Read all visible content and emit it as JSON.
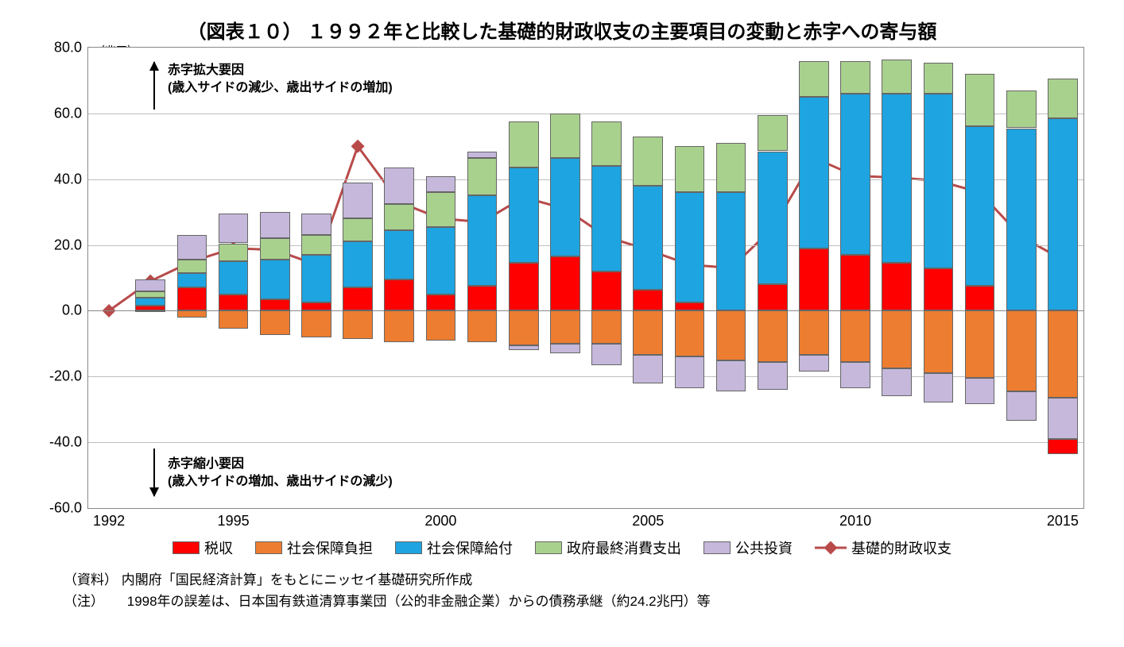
{
  "chart": {
    "type": "stacked-bar-with-line",
    "title": "（図表１０） １９９２年と比較した基礎的財政収支の主要項目の変動と赤字への寄与額",
    "unit_label": "（兆円）",
    "background_color": "#ffffff",
    "grid_color": "#bfbfbf",
    "axis_color": "#888888",
    "title_fontsize": 24,
    "tick_fontsize": 18,
    "legend_fontsize": 18,
    "annotation_fontsize": 16,
    "footnote_fontsize": 17,
    "ylim": [
      -60,
      80
    ],
    "ytick_step": 20,
    "yticks": [
      "-60.0",
      "-40.0",
      "-20.0",
      "0.0",
      "20.0",
      "40.0",
      "60.0",
      "80.0"
    ],
    "years": [
      1992,
      1993,
      1994,
      1995,
      1996,
      1997,
      1998,
      1999,
      2000,
      2001,
      2002,
      2003,
      2004,
      2005,
      2006,
      2007,
      2008,
      2009,
      2010,
      2011,
      2012,
      2013,
      2014,
      2015
    ],
    "xtick_years": [
      1992,
      1995,
      2000,
      2005,
      2010,
      2015
    ],
    "bar_width_ratio": 0.72,
    "series": {
      "tax_revenue": {
        "label": "税収",
        "color": "#ff0000"
      },
      "ss_burden": {
        "label": "社会保障負担",
        "color": "#ed7d31"
      },
      "ss_benefit": {
        "label": "社会保障給付",
        "color": "#1ea4e0"
      },
      "gov_consume": {
        "label": "政府最終消費支出",
        "color": "#a9d18e"
      },
      "public_invest": {
        "label": "公共投資",
        "color": "#c5b8db"
      },
      "pb_line": {
        "label": "基礎的財政収支",
        "color": "#b84a4a",
        "marker": "diamond",
        "marker_size": 12,
        "line_width": 3
      }
    },
    "positive_stack_order": [
      "tax_revenue",
      "ss_benefit",
      "gov_consume",
      "public_invest"
    ],
    "negative_stack_order": [
      "ss_burden",
      "public_invest",
      "tax_revenue"
    ],
    "data": {
      "tax_revenue": [
        0,
        1.5,
        7.0,
        5.0,
        3.5,
        2.5,
        7.0,
        9.5,
        5.0,
        7.5,
        14.5,
        16.5,
        12.0,
        6.5,
        2.5,
        0.0,
        8.0,
        19.0,
        17.0,
        14.5,
        13.0,
        7.5,
        0.0,
        -4.5
      ],
      "ss_burden": [
        0,
        -0.5,
        -2.0,
        -5.5,
        -7.5,
        -8.0,
        -8.5,
        -9.5,
        -9.0,
        -9.5,
        -10.5,
        -10.0,
        -10.0,
        -13.5,
        -14.0,
        -15.0,
        -15.5,
        -13.5,
        -15.5,
        -17.5,
        -19.0,
        -20.5,
        -24.5,
        -26.5
      ],
      "ss_benefit": [
        0,
        2.5,
        4.5,
        10.0,
        12.0,
        14.5,
        14.0,
        15.0,
        20.5,
        27.5,
        29.0,
        30.0,
        32.0,
        31.5,
        33.5,
        36.0,
        40.5,
        46.0,
        49.0,
        51.5,
        53.0,
        48.5,
        55.5,
        58.5
      ],
      "gov_consume": [
        0,
        2.0,
        4.0,
        5.5,
        6.5,
        6.0,
        7.0,
        8.0,
        10.5,
        11.5,
        14.0,
        13.5,
        13.5,
        15.0,
        14.0,
        15.0,
        11.0,
        11.0,
        10.0,
        10.5,
        9.5,
        16.0,
        11.5,
        12.0
      ],
      "public_invest": [
        0,
        3.5,
        7.5,
        9.0,
        8.0,
        6.5,
        11.0,
        11.0,
        5.0,
        2.0,
        -1.5,
        -3.0,
        -6.5,
        -8.5,
        -9.5,
        -9.5,
        -8.5,
        -5.0,
        -8.0,
        -8.5,
        -9.0,
        -8.0,
        -9.0,
        -12.5
      ],
      "pb_line": [
        0,
        9.0,
        15.0,
        19.0,
        18.5,
        14.0,
        50.0,
        33.0,
        28.0,
        27.0,
        34.5,
        31.0,
        22.5,
        18.5,
        14.0,
        13.0,
        25.0,
        46.5,
        41.0,
        40.5,
        39.5,
        36.0,
        22.5,
        15.5
      ]
    },
    "annotations": {
      "top": {
        "line1": "赤字拡大要因",
        "line2": "(歳入サイドの減少、歳出サイドの増加)"
      },
      "bottom": {
        "line1": "赤字縮小要因",
        "line2": "(歳入サイドの増加、歳出サイドの減少)"
      }
    },
    "footnotes": {
      "source_label": "（資料）",
      "source_text": "内閣府「国民経済計算」をもとにニッセイ基礎研究所作成",
      "note_label": "（注）",
      "note_text": "1998年の誤差は、日本国有鉄道清算事業団（公的非金融企業）からの債務承継（約24.2兆円）等"
    }
  }
}
